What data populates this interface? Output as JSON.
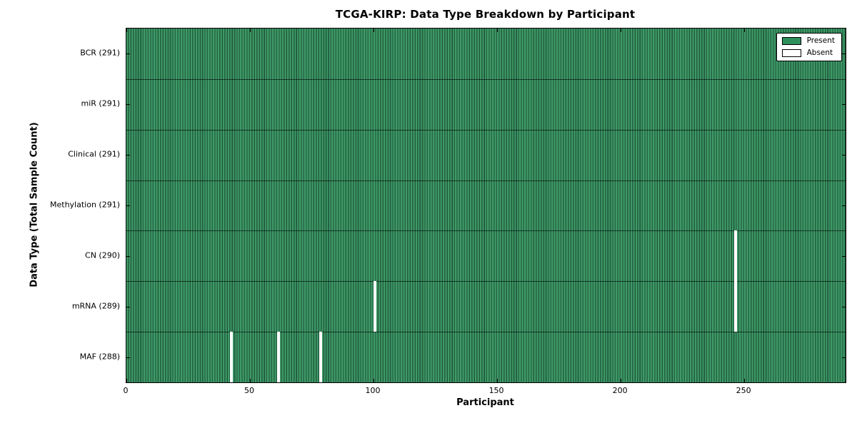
{
  "figure": {
    "title": "TCGA-KIRP: Data Type Breakdown by Participant",
    "xlabel": "Participant",
    "ylabel": "Data Type (Total Sample Count)"
  },
  "legend": {
    "present_label": "Present",
    "absent_label": "Absent",
    "position": "upper right"
  },
  "colors": {
    "present_fill": "#3F9B66",
    "present_stripe_mid": "#2B7150",
    "present_stripe_dark": "#1E5439",
    "absent_fill": "#FFFFFF",
    "axis": "#000000",
    "background": "#FFFFFF"
  },
  "chart_data": {
    "type": "heatmap",
    "title": "TCGA-KIRP: Data Type Breakdown by Participant",
    "xlabel": "Participant",
    "ylabel": "Data Type (Total Sample Count)",
    "x_range": [
      0,
      291
    ],
    "x_ticks": [
      0,
      50,
      100,
      150,
      200,
      250
    ],
    "n_participants": 291,
    "grid": false,
    "legend_entries": [
      "Present",
      "Absent"
    ],
    "legend_position": "upper right",
    "rows": [
      {
        "label": "BCR (291)",
        "data_type": "BCR",
        "present_count": 291,
        "absent_participants": []
      },
      {
        "label": "miR (291)",
        "data_type": "miR",
        "present_count": 291,
        "absent_participants": []
      },
      {
        "label": "Clinical (291)",
        "data_type": "Clinical",
        "present_count": 291,
        "absent_participants": []
      },
      {
        "label": "Methylation (291)",
        "data_type": "Methylation",
        "present_count": 291,
        "absent_participants": []
      },
      {
        "label": "CN (290)",
        "data_type": "CN",
        "present_count": 290,
        "absent_participants": [
          246
        ]
      },
      {
        "label": "mRNA (289)",
        "data_type": "mRNA",
        "present_count": 289,
        "absent_participants": [
          100,
          246
        ]
      },
      {
        "label": "MAF (288)",
        "data_type": "MAF",
        "present_count": 288,
        "absent_participants": [
          42,
          61,
          78
        ]
      }
    ]
  }
}
